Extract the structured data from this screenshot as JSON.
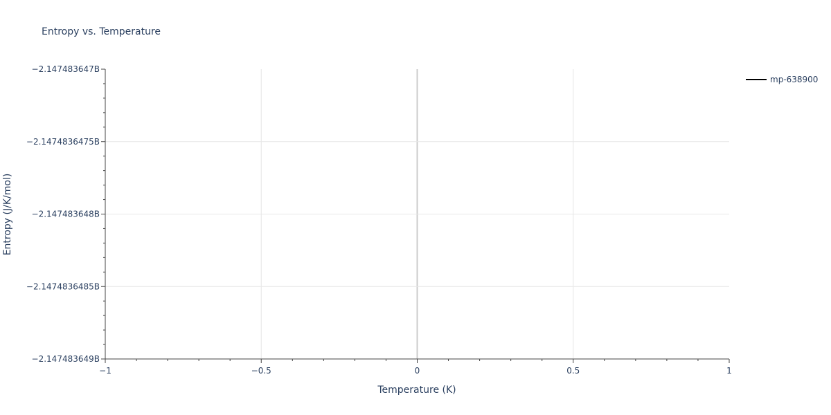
{
  "chart_data": {
    "type": "line",
    "title": "Entropy vs. Temperature",
    "xlabel": "Temperature (K)",
    "ylabel": "Entropy (J/K/mol)",
    "xlim": [
      -1,
      1
    ],
    "ylim": [
      -2147483649,
      -2147483647
    ],
    "x_ticks": [
      -1,
      -0.5,
      0,
      0.5,
      1
    ],
    "x_tick_labels": [
      "−1",
      "−0.5",
      "0",
      "0.5",
      "1"
    ],
    "y_ticks": [
      -2147483647,
      -2147483647.5,
      -2147483648,
      -2147483648.5,
      -2147483649
    ],
    "y_tick_labels": [
      "−2.147483647B",
      "−2.1474836475B",
      "−2.147483648B",
      "−2.1474836485B",
      "−2.147483649B"
    ],
    "grid": true,
    "legend_position": "top-right",
    "series": [
      {
        "name": "mp-638900",
        "color": "#000000",
        "x": [],
        "y": []
      }
    ]
  }
}
